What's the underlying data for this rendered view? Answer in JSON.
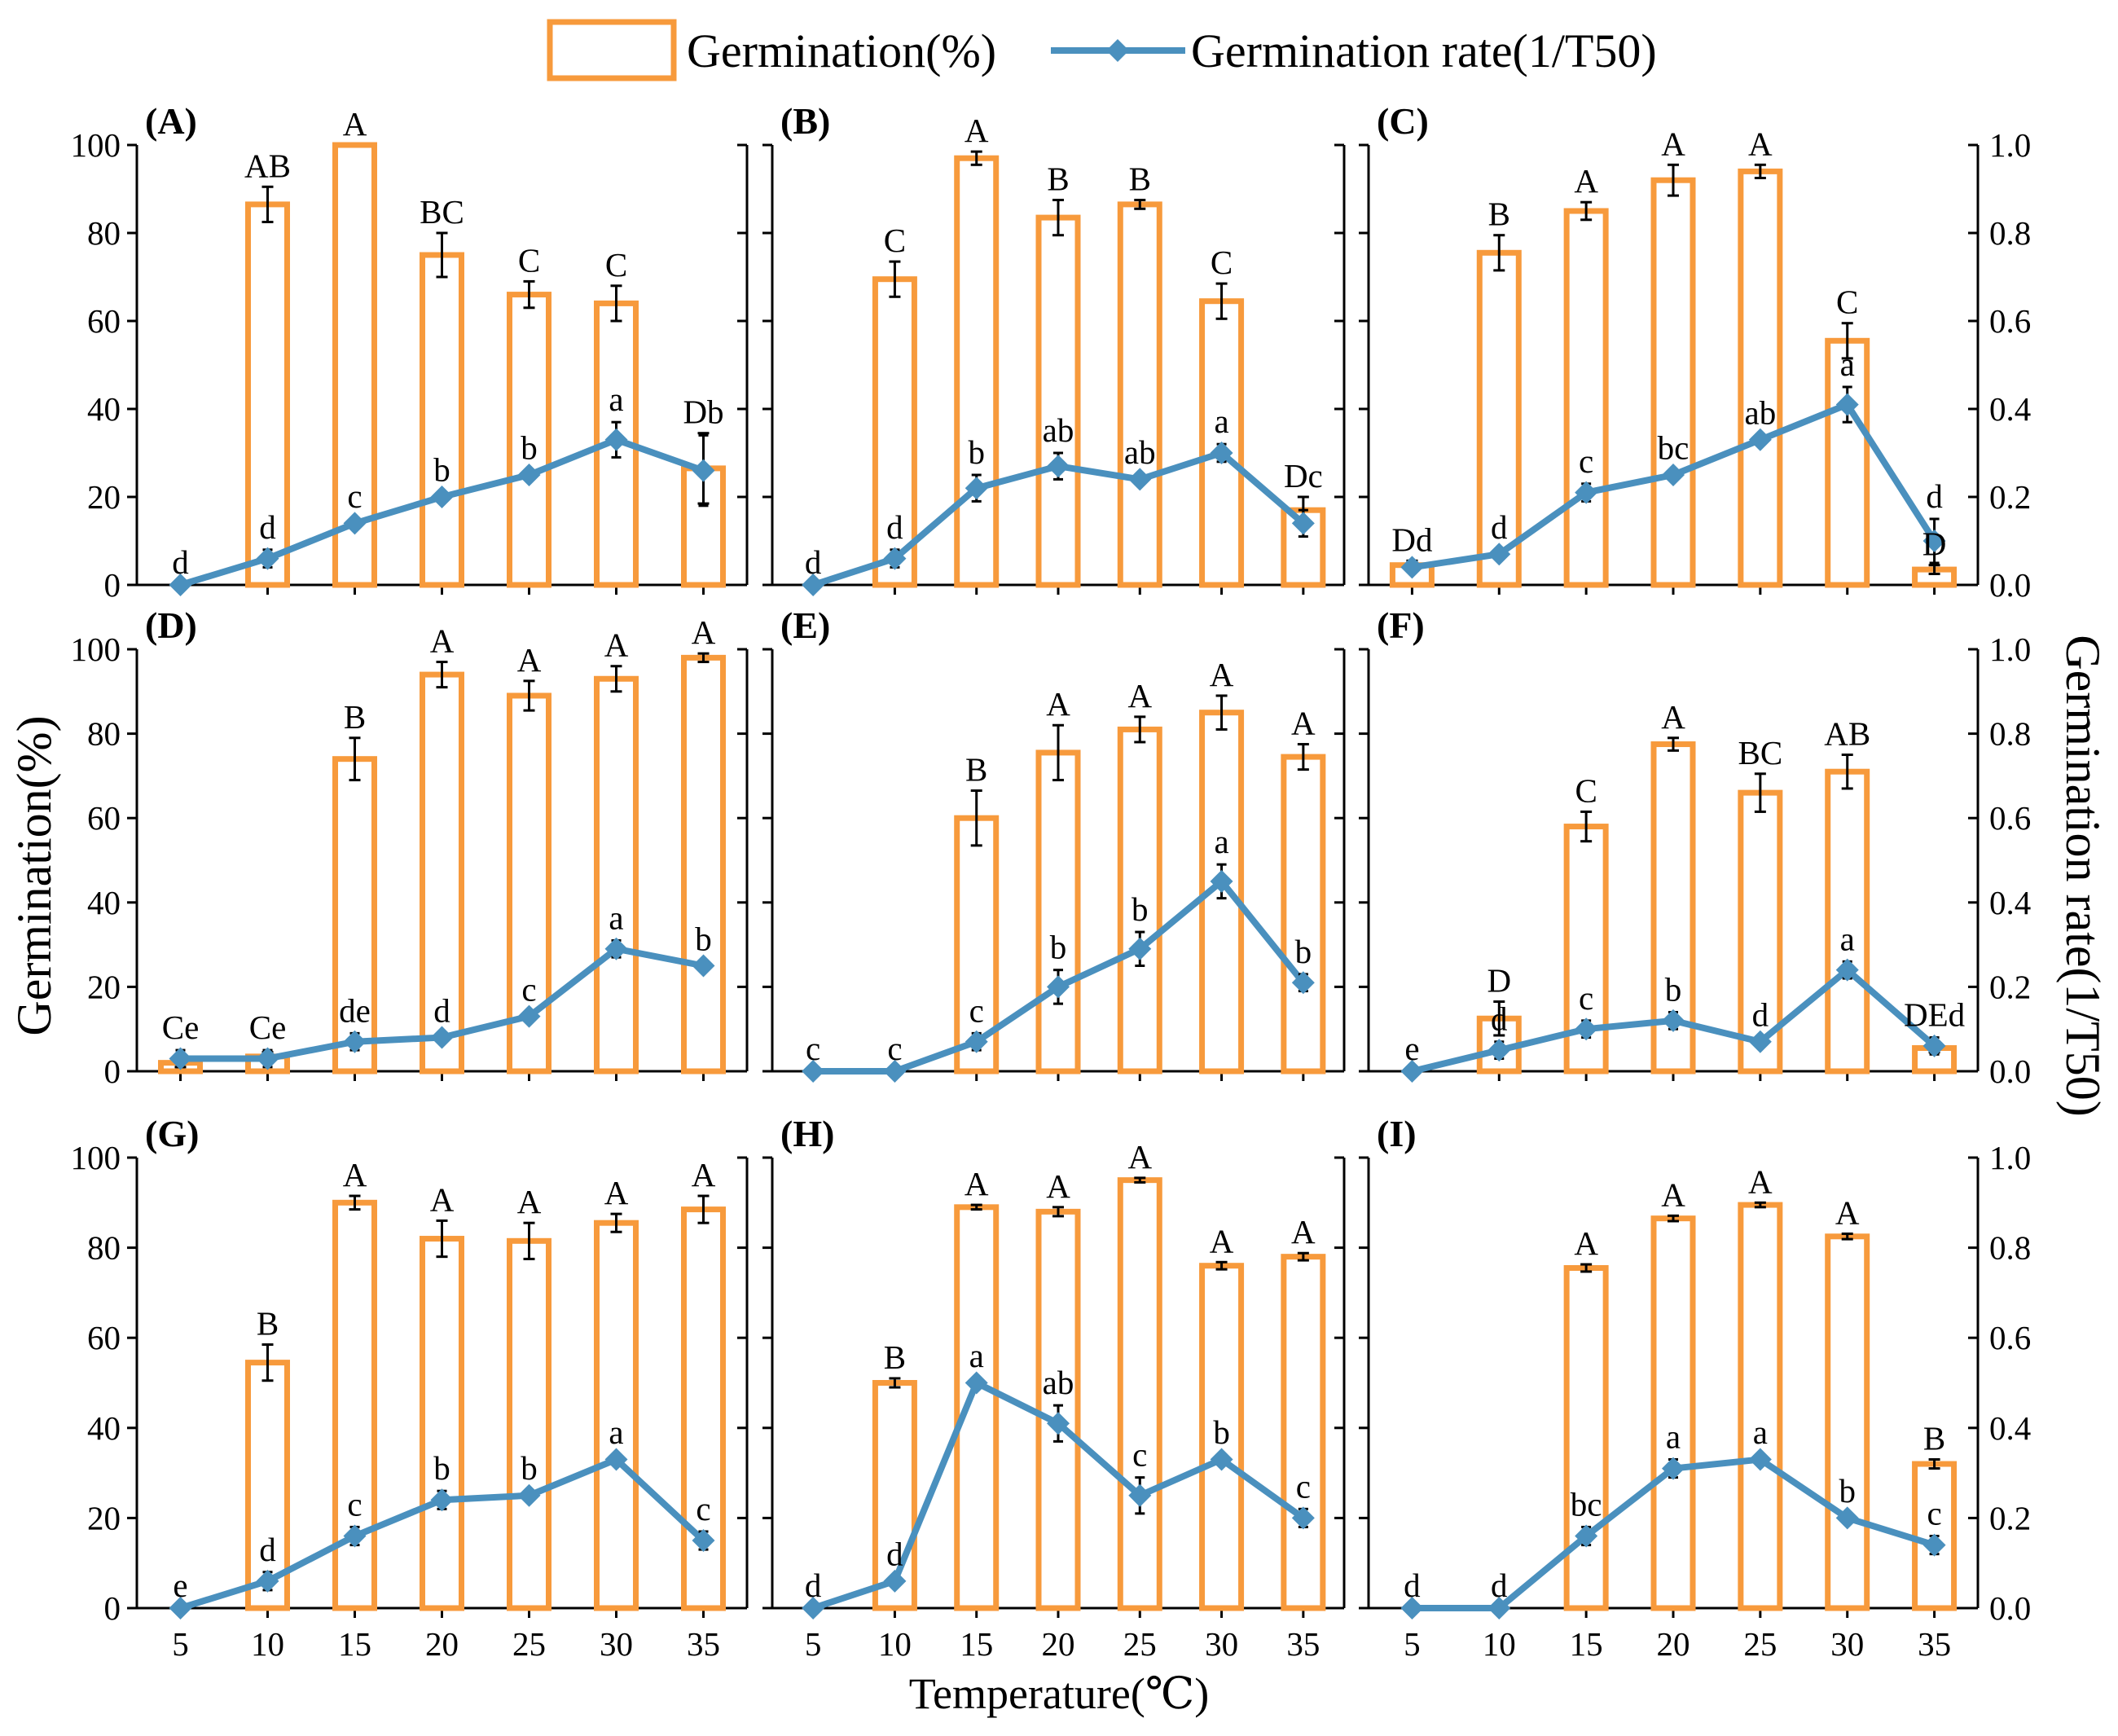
{
  "colors": {
    "bar": "#F79A3C",
    "line": "#4A90BE",
    "marker": "#4A90BE",
    "axis": "#000000",
    "errorbar": "#000000"
  },
  "legend": {
    "bar_label": "Germination(%)",
    "line_label": "Germination rate(1/T50)"
  },
  "axes": {
    "y_left_label": "Germination(%)",
    "y_right_label": "Germination rate(1/T50)",
    "x_label": "Temperature(℃)",
    "y_left_ticks": [
      "0",
      "20",
      "40",
      "60",
      "80",
      "100"
    ],
    "y_right_ticks": [
      "0.0",
      "0.2",
      "0.4",
      "0.6",
      "0.8",
      "1.0"
    ],
    "x_ticks": [
      "5",
      "10",
      "15",
      "20",
      "25",
      "30",
      "35"
    ]
  },
  "chart_data": {
    "type": "bar+line (dual axis), 3x3 panels",
    "x": [
      5,
      10,
      15,
      20,
      25,
      30,
      35
    ],
    "xlabel": "Temperature(℃)",
    "ylabel_left": "Germination(%)",
    "ylabel_right": "Germination rate(1/T50)",
    "ylim_left": [
      0,
      100
    ],
    "ylim_right": [
      0,
      1.0
    ],
    "series": [
      {
        "name": "Germination(%)",
        "kind": "bar",
        "axis": "left"
      },
      {
        "name": "Germination rate(1/T50)",
        "kind": "line",
        "axis": "right"
      }
    ],
    "panels": [
      {
        "label": "(A)",
        "germination": [
          0,
          86.5,
          100,
          75,
          66,
          64,
          26.5
        ],
        "germination_err": [
          0,
          4,
          0,
          5,
          3,
          4,
          8
        ],
        "germination_letters": [
          "",
          "AB",
          "A",
          "BC",
          "C",
          "C",
          "D"
        ],
        "rate": [
          0,
          0.06,
          0.14,
          0.2,
          0.25,
          0.33,
          0.26
        ],
        "rate_err": [
          0,
          0.02,
          0.01,
          0.01,
          0.01,
          0.04,
          0.08
        ],
        "rate_letters": [
          "d",
          "d",
          "c",
          "b",
          "b",
          "a",
          "b"
        ]
      },
      {
        "label": "(B)",
        "germination": [
          0,
          69.5,
          97,
          83.5,
          86.5,
          64.5,
          17
        ],
        "germination_err": [
          0,
          4,
          1.5,
          4,
          1,
          4,
          3
        ],
        "germination_letters": [
          "",
          "C",
          "A",
          "B",
          "B",
          "C",
          "Dc"
        ],
        "rate": [
          0,
          0.06,
          0.22,
          0.27,
          0.24,
          0.3,
          0.14
        ],
        "rate_err": [
          0,
          0.02,
          0.03,
          0.03,
          0.01,
          0.02,
          0.03
        ],
        "rate_letters": [
          "d",
          "d",
          "b",
          "ab",
          "ab",
          "a",
          ""
        ]
      },
      {
        "label": "(C)",
        "germination": [
          4.5,
          75.5,
          85,
          92,
          94,
          55.5,
          3.5
        ],
        "germination_err": [
          1,
          4,
          2,
          3.5,
          1.5,
          4,
          1
        ],
        "germination_letters": [
          "D",
          "B",
          "A",
          "A",
          "A",
          "C",
          "D"
        ],
        "rate": [
          0.04,
          0.07,
          0.21,
          0.25,
          0.33,
          0.41,
          0.1
        ],
        "rate_err": [
          0.01,
          0.01,
          0.02,
          0.01,
          0.01,
          0.04,
          0.05
        ],
        "rate_letters": [
          "d",
          "d",
          "c",
          "bc",
          "ab",
          "a",
          "d"
        ]
      },
      {
        "label": "(D)",
        "germination": [
          2,
          3.5,
          74,
          94,
          89,
          93,
          98
        ],
        "germination_err": [
          1,
          1,
          5,
          3,
          3.5,
          3,
          1
        ],
        "germination_letters": [
          "C",
          "C",
          "B",
          "A",
          "A",
          "A",
          "A"
        ],
        "rate": [
          0.03,
          0.03,
          0.07,
          0.08,
          0.13,
          0.29,
          0.25
        ],
        "rate_err": [
          0.02,
          0.02,
          0.02,
          0.01,
          0.01,
          0.02,
          0.01
        ],
        "rate_letters": [
          "e",
          "e",
          "de",
          "d",
          "c",
          "a",
          "b"
        ]
      },
      {
        "label": "(E)",
        "germination": [
          0,
          0,
          60,
          75.5,
          81,
          85,
          74.5
        ],
        "germination_err": [
          0,
          0,
          6.5,
          6.5,
          3,
          4,
          3
        ],
        "germination_letters": [
          "",
          "",
          "B",
          "A",
          "A",
          "A",
          "A"
        ],
        "rate": [
          0,
          0,
          0.07,
          0.2,
          0.29,
          0.45,
          0.21
        ],
        "rate_err": [
          0,
          0,
          0.02,
          0.04,
          0.04,
          0.04,
          0.02
        ],
        "rate_letters": [
          "c",
          "c",
          "c",
          "b",
          "b",
          "a",
          "b"
        ]
      },
      {
        "label": "(F)",
        "germination": [
          0,
          12.5,
          58,
          77.5,
          66,
          71,
          5.5
        ],
        "germination_err": [
          0,
          4,
          3.5,
          1.5,
          4.5,
          4,
          1
        ],
        "germination_letters": [
          "",
          "D",
          "C",
          "A",
          "BC",
          "AB",
          "DE"
        ],
        "rate": [
          0,
          0.05,
          0.1,
          0.12,
          0.07,
          0.24,
          0.06
        ],
        "rate_err": [
          0,
          0.02,
          0.02,
          0.02,
          0.01,
          0.02,
          0.02
        ],
        "rate_letters": [
          "e",
          "d",
          "c",
          "b",
          "d",
          "a",
          "d"
        ]
      },
      {
        "label": "(G)",
        "germination": [
          0,
          54.5,
          90,
          82,
          81.5,
          85.5,
          88.5
        ],
        "germination_err": [
          0,
          4,
          1.5,
          4,
          4,
          2,
          3
        ],
        "germination_letters": [
          "",
          "B",
          "A",
          "A",
          "A",
          "A",
          "A"
        ],
        "rate": [
          0,
          0.06,
          0.16,
          0.24,
          0.25,
          0.33,
          0.15
        ],
        "rate_err": [
          0,
          0.02,
          0.02,
          0.02,
          0.01,
          0.01,
          0.02
        ],
        "rate_letters": [
          "e",
          "d",
          "c",
          "b",
          "b",
          "a",
          "c"
        ]
      },
      {
        "label": "(H)",
        "germination": [
          0,
          50,
          89,
          88,
          95,
          76,
          78
        ],
        "germination_err": [
          0,
          1,
          0.5,
          1,
          0.5,
          0.8,
          0.8
        ],
        "germination_letters": [
          "",
          "B",
          "A",
          "A",
          "A",
          "A",
          "A"
        ],
        "rate": [
          0,
          0.06,
          0.5,
          0.41,
          0.25,
          0.33,
          0.2
        ],
        "rate_err": [
          0,
          0.01,
          0.01,
          0.04,
          0.04,
          0.01,
          0.02
        ],
        "rate_letters": [
          "d",
          "d",
          "a",
          "ab",
          "c",
          "b",
          "c"
        ]
      },
      {
        "label": "(I)",
        "germination": [
          0,
          0,
          75.5,
          86.5,
          89.5,
          82.5,
          32
        ],
        "germination_err": [
          0,
          0,
          0.8,
          0.6,
          0.5,
          0.6,
          1
        ],
        "germination_letters": [
          "",
          "",
          "A",
          "A",
          "A",
          "A",
          "B"
        ],
        "rate": [
          0,
          0,
          0.16,
          0.31,
          0.33,
          0.2,
          0.14
        ],
        "rate_err": [
          0,
          0,
          0.02,
          0.02,
          0.01,
          0.01,
          0.02
        ],
        "rate_letters": [
          "d",
          "d",
          "bc",
          "a",
          "a",
          "b",
          "c"
        ]
      }
    ]
  }
}
